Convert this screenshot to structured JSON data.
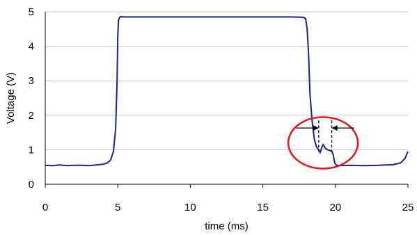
{
  "chart_data": {
    "type": "line",
    "title": "",
    "xlabel": "time (ms)",
    "ylabel": "Voltage (V)",
    "xlim": [
      0,
      25
    ],
    "ylim": [
      0,
      5
    ],
    "xticks": [
      "0",
      "5",
      "10",
      "15",
      "20",
      "25"
    ],
    "yticks": [
      "0",
      "1",
      "2",
      "3",
      "4",
      "5"
    ],
    "grid": "horizontal",
    "legend": "none",
    "series": [
      {
        "color": "#1f1f8f",
        "x": [
          0,
          0.5,
          1,
          1.5,
          2,
          2.5,
          3,
          3.5,
          4,
          4.3,
          4.5,
          4.7,
          4.85,
          4.95,
          5.0,
          5.05,
          5.1,
          5.2,
          5.4,
          6,
          8,
          10,
          12,
          14,
          16,
          17,
          17.8,
          17.95,
          18.05,
          18.15,
          18.25,
          18.4,
          18.55,
          18.7,
          18.85,
          18.95,
          19.05,
          19.15,
          19.3,
          19.45,
          19.6,
          19.75,
          19.85,
          19.95,
          20.05,
          20.3,
          21,
          22,
          23,
          24,
          24.5,
          24.8,
          25
        ],
        "y": [
          0.55,
          0.54,
          0.56,
          0.54,
          0.55,
          0.55,
          0.54,
          0.56,
          0.58,
          0.62,
          0.7,
          0.95,
          1.6,
          3.0,
          4.3,
          4.75,
          4.82,
          4.86,
          4.85,
          4.85,
          4.85,
          4.85,
          4.85,
          4.85,
          4.85,
          4.85,
          4.84,
          4.8,
          4.5,
          3.8,
          2.6,
          1.8,
          1.3,
          1.08,
          1.0,
          0.92,
          1.05,
          1.15,
          1.05,
          1.0,
          0.98,
          0.96,
          0.85,
          0.62,
          0.56,
          0.54,
          0.55,
          0.54,
          0.55,
          0.57,
          0.62,
          0.75,
          0.95
        ]
      }
    ],
    "annotation": {
      "ellipse_color": "#e8141c",
      "arrow_color": "#000000"
    }
  }
}
